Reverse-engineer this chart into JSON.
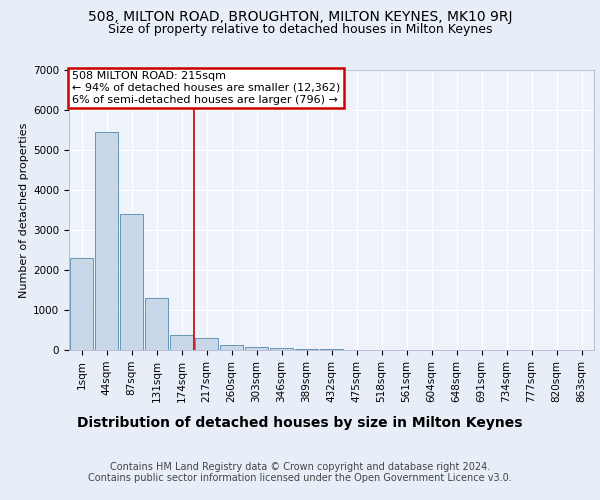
{
  "title1": "508, MILTON ROAD, BROUGHTON, MILTON KEYNES, MK10 9RJ",
  "title2": "Size of property relative to detached houses in Milton Keynes",
  "xlabel": "Distribution of detached houses by size in Milton Keynes",
  "ylabel": "Number of detached properties",
  "categories": [
    "1sqm",
    "44sqm",
    "87sqm",
    "131sqm",
    "174sqm",
    "217sqm",
    "260sqm",
    "303sqm",
    "346sqm",
    "389sqm",
    "432sqm",
    "475sqm",
    "518sqm",
    "561sqm",
    "604sqm",
    "648sqm",
    "691sqm",
    "734sqm",
    "777sqm",
    "820sqm",
    "863sqm"
  ],
  "values": [
    2300,
    5450,
    3400,
    1300,
    380,
    300,
    130,
    80,
    50,
    30,
    20,
    10,
    8,
    5,
    3,
    2,
    2,
    1,
    1,
    1,
    1
  ],
  "bar_color": "#c8d8e8",
  "bar_edge_color": "#5588aa",
  "highlight_index": 5,
  "annotation_text": "508 MILTON ROAD: 215sqm\n← 94% of detached houses are smaller (12,362)\n6% of semi-detached houses are larger (796) →",
  "annotation_box_color": "#ffffff",
  "annotation_box_edge": "#cc0000",
  "vline_color": "#cc0000",
  "ylim": [
    0,
    7000
  ],
  "yticks": [
    0,
    1000,
    2000,
    3000,
    4000,
    5000,
    6000,
    7000
  ],
  "footer": "Contains HM Land Registry data © Crown copyright and database right 2024.\nContains public sector information licensed under the Open Government Licence v3.0.",
  "bg_color": "#e8eef8",
  "plot_bg_color": "#eef2fa",
  "grid_color": "#ffffff",
  "title1_fontsize": 10,
  "title2_fontsize": 9,
  "xlabel_fontsize": 10,
  "ylabel_fontsize": 8,
  "tick_fontsize": 7.5,
  "annotation_fontsize": 8,
  "footer_fontsize": 7
}
